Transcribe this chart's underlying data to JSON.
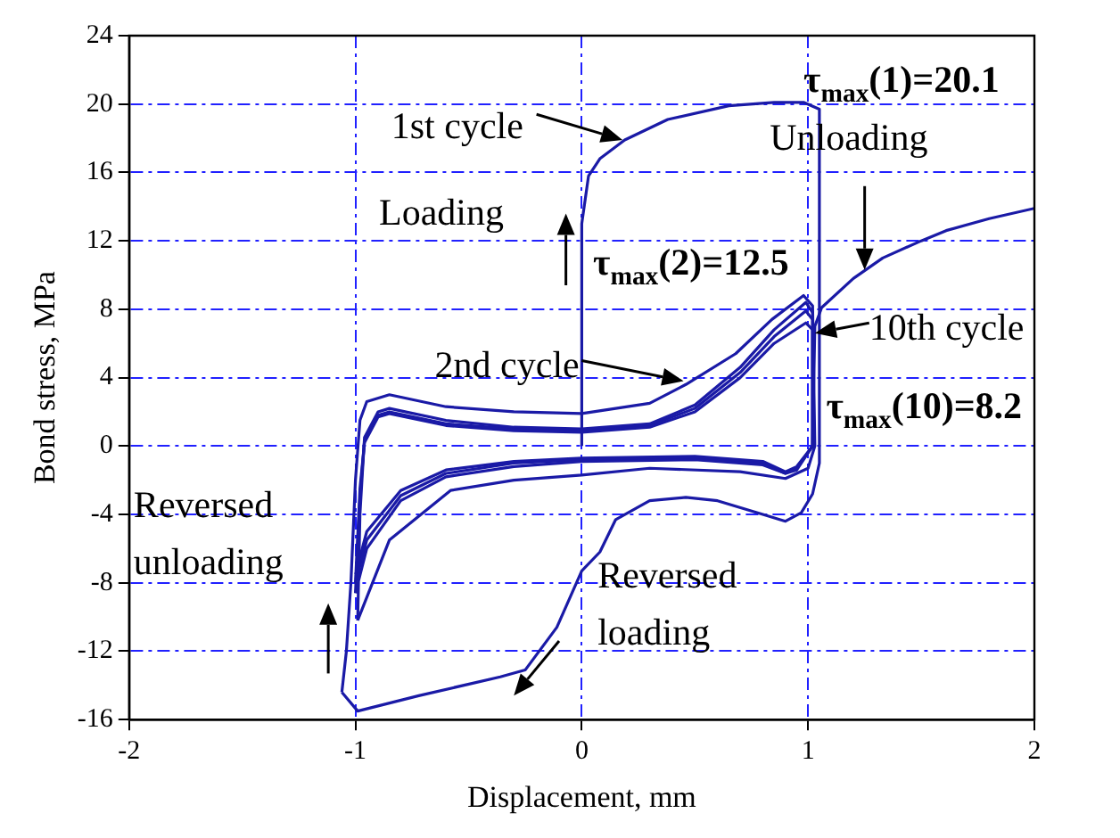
{
  "chart_data": {
    "type": "line",
    "xlabel": "Displacement, mm",
    "ylabel": "Bond stress, MPa",
    "xlim": [
      -2,
      2
    ],
    "xticks": [
      -2,
      -1,
      0,
      1,
      2
    ],
    "ylim": [
      -16,
      24
    ],
    "yticks": [
      -16,
      -12,
      -8,
      -4,
      0,
      4,
      8,
      12,
      16,
      20,
      24
    ],
    "grid": true,
    "legend": false,
    "series": [
      {
        "color": "#1a1aa6",
        "x": [
          0,
          0,
          0.03,
          0.08,
          0.19,
          0.38,
          0.65,
          0.85,
          0.98,
          1.05,
          1.05,
          1.02,
          0.97,
          0.9,
          0.8,
          0.6,
          0.46,
          0.3,
          0.15,
          0.08,
          0,
          -0.11,
          -0.25,
          -0.36,
          -0.72,
          -0.99,
          -1.06
        ],
        "values": [
          0,
          13,
          15.8,
          16.8,
          17.9,
          19.1,
          19.9,
          20.1,
          20.1,
          19.7,
          -1,
          -2.8,
          -3.9,
          -4.4,
          -4,
          -3.2,
          -3,
          -3.2,
          -4.3,
          -6.2,
          -7.3,
          -10.6,
          -13.1,
          -13.5,
          -14.6,
          -15.5,
          -14.4
        ]
      },
      {
        "color": "#1a1aa6",
        "x": [
          -1.06,
          -1.04,
          -1.02,
          -1,
          -0.98,
          -0.95,
          -0.85,
          -0.6,
          -0.3,
          0,
          0.3,
          0.46,
          0.68,
          0.84,
          0.98,
          1.02,
          1.03,
          1,
          0.9,
          0.7,
          0.3,
          0,
          -0.3,
          -0.58,
          -0.85,
          -0.99
        ],
        "values": [
          -14.4,
          -12,
          -8,
          -2,
          1.5,
          2.6,
          3,
          2.3,
          2,
          1.9,
          2.5,
          3.6,
          5.4,
          7.4,
          8.8,
          8.2,
          0,
          -1.3,
          -1.9,
          -1.5,
          -1.3,
          -1.7,
          -2,
          -2.6,
          -5.5,
          -10.2
        ]
      },
      {
        "color": "#1a1aa6",
        "x": [
          -0.99,
          -0.98,
          -0.96,
          -0.9,
          -0.85,
          -0.6,
          -0.3,
          0,
          0.3,
          0.5,
          0.7,
          0.85,
          0.99,
          1.02,
          1.02,
          0.95,
          0.9,
          0.8,
          0.5,
          0,
          -0.3,
          -0.6,
          -0.8,
          -0.95,
          -1
        ],
        "values": [
          -10.2,
          -4,
          0.5,
          2,
          2.2,
          1.5,
          1.1,
          1,
          1.3,
          2.4,
          4.6,
          6.8,
          8.4,
          7.8,
          0,
          -1.4,
          -1.6,
          -1.1,
          -0.8,
          -0.9,
          -1.2,
          -1.8,
          -3.2,
          -6,
          -8.6
        ]
      },
      {
        "color": "#1a1aa6",
        "x": [
          -1,
          -0.98,
          -0.96,
          -0.9,
          -0.85,
          -0.6,
          -0.3,
          0,
          0.3,
          0.5,
          0.7,
          0.85,
          0.99,
          1.02,
          1.02,
          0.95,
          0.9,
          0.8,
          0.5,
          0,
          -0.3,
          -0.6,
          -0.8,
          -0.95,
          -1
        ],
        "values": [
          -8.6,
          -3,
          0.3,
          1.8,
          2,
          1.3,
          1,
          0.9,
          1.2,
          2.2,
          4.3,
          6.4,
          7.9,
          7.4,
          0,
          -1.3,
          -1.6,
          -1,
          -0.7,
          -0.8,
          -1,
          -1.6,
          -2.9,
          -5.5,
          -8
        ]
      },
      {
        "color": "#1a1aa6",
        "x": [
          -1,
          -0.98,
          -0.96,
          -0.9,
          -0.85,
          -0.6,
          -0.3,
          0,
          0.3,
          0.5,
          0.7,
          0.85,
          0.99,
          1.02,
          1.02,
          0.95,
          0.9,
          0.8,
          0.5,
          0,
          -0.3,
          -0.6,
          -0.8,
          -0.95,
          -1
        ],
        "values": [
          -8,
          -2.5,
          0.2,
          1.7,
          1.9,
          1.2,
          0.9,
          0.8,
          1.1,
          2,
          4,
          6,
          7.2,
          6.8,
          0,
          -1.2,
          -1.5,
          -0.9,
          -0.6,
          -0.7,
          -0.9,
          -1.4,
          -2.6,
          -5,
          -7.5
        ]
      },
      {
        "color": "#1a1aa6",
        "x": [
          1.02,
          1.03,
          1.06,
          1.2,
          1.33,
          1.5,
          1.61,
          1.8,
          2
        ],
        "values": [
          0,
          7,
          8.1,
          9.8,
          11,
          12,
          12.6,
          13.3,
          13.9
        ]
      }
    ],
    "annotations": [
      "τ$_{max}$(1)=20.1",
      {
        "text": "1st cycle",
        "x": 0.18,
        "y": 17.9
      },
      {
        "text": "Unloading",
        "x": 1.25,
        "y": 10.3
      },
      "Loading",
      "τ$_{max}$(2)=12.5",
      {
        "text": "10th cycle",
        "x": 1.03,
        "y": 6.6
      },
      {
        "text": "2nd cycle",
        "x": 0.45,
        "y": 3.8
      },
      "τ$_{max}$(10)=8.2",
      "Reversed unloading",
      "Reversed loading"
    ]
  }
}
